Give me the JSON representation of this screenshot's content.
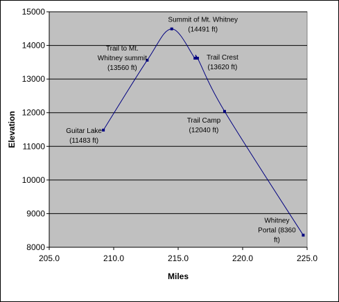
{
  "chart_data": {
    "type": "line",
    "title": "",
    "xlabel": "Miles",
    "ylabel": "Elevation",
    "xlim": [
      205.0,
      225.0
    ],
    "ylim": [
      8000,
      15000
    ],
    "x_ticks": [
      205,
      210,
      215,
      220,
      225
    ],
    "y_ticks": [
      8000,
      9000,
      10000,
      11000,
      12000,
      13000,
      14000,
      15000
    ],
    "x_tick_labels": [
      "205.0",
      "210.0",
      "215.0",
      "220.0",
      "225.0"
    ],
    "y_tick_labels": [
      "8000",
      "9000",
      "10000",
      "11000",
      "12000",
      "13000",
      "14000",
      "15000"
    ],
    "grid": "horizontal",
    "legend": "none",
    "colors": {
      "plot_background": "#c0c0c0",
      "line": "#000080",
      "gridline": "#000000",
      "frame": "#808080"
    },
    "series": [
      {
        "x": [
          209.2,
          212.6,
          214.5,
          216.3,
          216.5,
          218.6,
          224.7
        ],
        "y": [
          11483,
          13560,
          14491,
          13620,
          13620,
          12040,
          8360
        ]
      }
    ],
    "annotations": [
      {
        "x": 209.2,
        "y": 11483,
        "lines": [
          "Guitar Lake",
          "(11483 ft)"
        ]
      },
      {
        "x": 212.6,
        "y": 13560,
        "lines": [
          "Trail to Mt.",
          "Whitney summit",
          "(13560 ft)"
        ]
      },
      {
        "x": 214.5,
        "y": 14491,
        "lines": [
          "Summit of Mt. Whitney",
          "(14491 ft)"
        ]
      },
      {
        "x": 216.5,
        "y": 13620,
        "lines": [
          "Trail Crest",
          "(13620 ft)"
        ]
      },
      {
        "x": 218.6,
        "y": 12040,
        "lines": [
          "Trail Camp",
          "(12040 ft)"
        ]
      },
      {
        "x": 224.7,
        "y": 8360,
        "lines": [
          "Whitney",
          "Portal (8360",
          "ft)"
        ]
      }
    ]
  }
}
